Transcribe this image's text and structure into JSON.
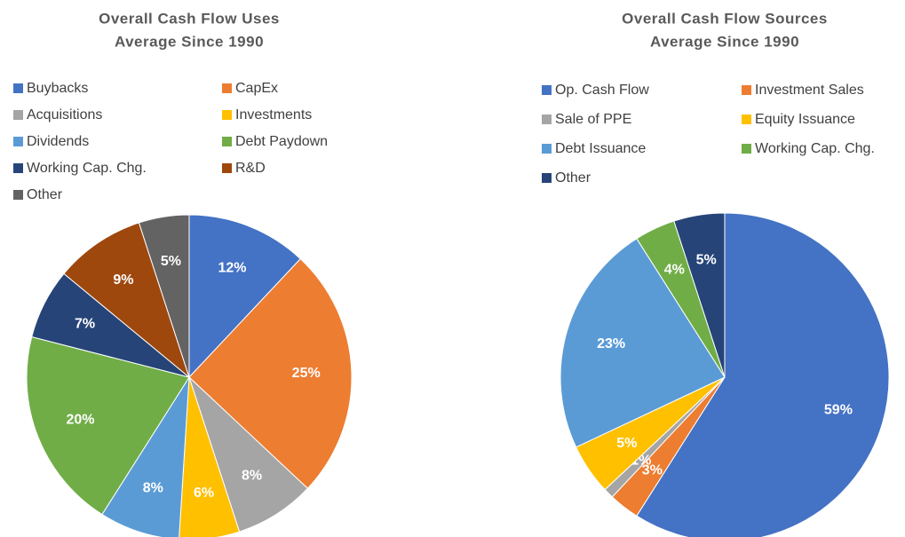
{
  "chart_data": [
    {
      "type": "pie",
      "title": "Overall Cash Flow Uses",
      "subtitle": "Average Since 1990",
      "categories": [
        "Buybacks",
        "CapEx",
        "Acquisitions",
        "Investments",
        "Dividends",
        "Debt Paydown",
        "Working Cap. Chg.",
        "R&D",
        "Other"
      ],
      "values": [
        12,
        25,
        8,
        6,
        8,
        20,
        7,
        9,
        5
      ],
      "value_labels": [
        "12%",
        "25%",
        "8%",
        "6%",
        "8%",
        "20%",
        "7%",
        "9%",
        "5%"
      ],
      "colors": [
        "#4472c4",
        "#ed7d31",
        "#a5a5a5",
        "#ffc000",
        "#5b9bd5",
        "#70ad47",
        "#264478",
        "#9e480e",
        "#636363"
      ]
    },
    {
      "type": "pie",
      "title": "Overall Cash Flow Sources",
      "subtitle": "Average Since 1990",
      "categories": [
        "Op. Cash Flow",
        "Investment Sales",
        "Sale of PPE",
        "Equity Issuance",
        "Debt Issuance",
        "Working Cap. Chg.",
        "Other"
      ],
      "values": [
        59,
        3,
        1,
        5,
        23,
        4,
        5
      ],
      "value_labels": [
        "59%",
        "3%",
        "1%",
        "5%",
        "23%",
        "4%",
        "5%"
      ],
      "colors": [
        "#4472c4",
        "#ed7d31",
        "#a5a5a5",
        "#ffc000",
        "#5b9bd5",
        "#70ad47",
        "#264478"
      ]
    }
  ]
}
